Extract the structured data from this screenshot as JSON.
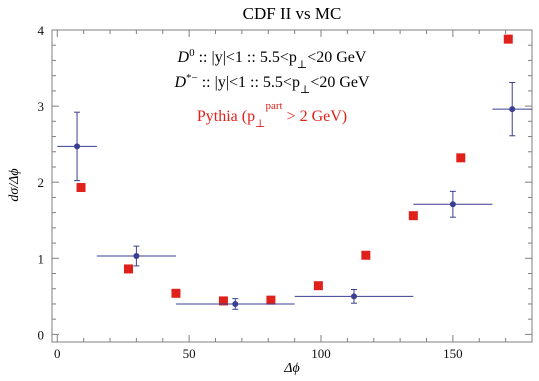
{
  "chart_data": {
    "type": "scatter",
    "title": "CDF II vs MC",
    "xlabel": "Δϕ",
    "ylabel": "dσ/Δϕ",
    "xlim": [
      -2,
      180
    ],
    "ylim": [
      -0.1,
      4.0
    ],
    "xticks": [
      0,
      50,
      100,
      150
    ],
    "yticks": [
      0,
      1,
      2,
      3,
      4
    ],
    "grid": false,
    "annotations": [
      {
        "id": "d0",
        "text_prefix": "D",
        "text_sup": "0",
        "text_mid": " :: |y|<1 :: 5.5<p",
        "text_sub": "⊥",
        "text_suffix": "<20  GeV",
        "color": "#000000"
      },
      {
        "id": "dstar",
        "text_prefix": "D",
        "text_sup": "*−",
        "text_mid": " :: |y|<1 :: 5.5<p",
        "text_sub": "⊥",
        "text_suffix": "<20  GeV",
        "color": "#000000"
      },
      {
        "id": "pythia",
        "text_prefix": "Pythia  (p",
        "text_sub": "⊥",
        "text_sup": "part",
        "text_suffix": " > 2 GeV)",
        "color": "#e0201b"
      }
    ],
    "series": [
      {
        "marker": "circle-errorbar",
        "color": "#3a3f8f",
        "points": [
          {
            "x": 7.5,
            "y": 2.47,
            "xerr": 7.5,
            "yerr": 0.45
          },
          {
            "x": 30,
            "y": 1.03,
            "xerr": 15,
            "yerr": 0.13
          },
          {
            "x": 67.5,
            "y": 0.4,
            "xerr": 22.5,
            "yerr": 0.07
          },
          {
            "x": 112.5,
            "y": 0.5,
            "xerr": 22.5,
            "yerr": 0.09
          },
          {
            "x": 150,
            "y": 1.71,
            "xerr": 15,
            "yerr": 0.17
          },
          {
            "x": 172.5,
            "y": 2.96,
            "xerr": 7.5,
            "yerr": 0.35
          }
        ]
      },
      {
        "marker": "square",
        "color": "#e0201b",
        "points": [
          {
            "x": 9,
            "y": 1.93
          },
          {
            "x": 27,
            "y": 0.86
          },
          {
            "x": 45,
            "y": 0.54
          },
          {
            "x": 63,
            "y": 0.44
          },
          {
            "x": 81,
            "y": 0.45
          },
          {
            "x": 99,
            "y": 0.64
          },
          {
            "x": 117,
            "y": 1.04
          },
          {
            "x": 135,
            "y": 1.56
          },
          {
            "x": 153,
            "y": 2.32
          },
          {
            "x": 171,
            "y": 3.88
          }
        ]
      }
    ]
  }
}
